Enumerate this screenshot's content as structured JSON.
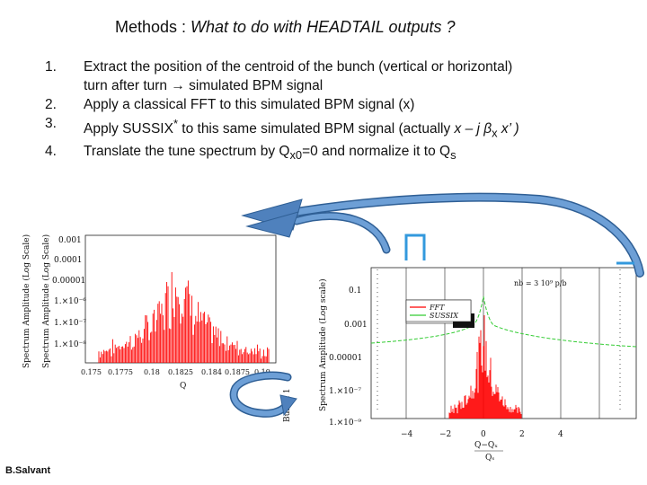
{
  "slide": {
    "title_prefix": "Methods : ",
    "title_italic": "What to do with HEADTAIL outputs ?",
    "author": "B.Salvant"
  },
  "steps": [
    {
      "number": "1.",
      "line1": "Extract the position of the centroid of the bunch (vertical or horizontal)",
      "line2_a": "turn after turn ",
      "line2_b": "simulated BPM signal"
    },
    {
      "number": "2.",
      "text": "Apply a classical FFT to this simulated BPM signal (x)"
    },
    {
      "number": "3.",
      "text_a": "Apply SUSSIX",
      "sup": "*",
      "text_b": " to this same simulated BPM signal (actually ",
      "expr": "x – j β",
      "sub": "x",
      "expr2": " x’ )"
    },
    {
      "number": "4.",
      "text_a": "Translate the tune spectrum by Q",
      "sub1": "x0",
      "text_b": "=0 and normalize it to Q",
      "sub2": "s"
    }
  ],
  "left_plot": {
    "ylabel_outer": "Spectrum Amplitude (Log Scale)",
    "ylabel_inner": "Spectrum Amplitude (Log Scale)",
    "ytick_labels": [
      "0.001",
      "0.0001",
      "0.00001",
      "1.×10⁻⁶",
      "1.×10⁻⁷",
      "1.×10⁻⁸"
    ],
    "xtick_labels": [
      "0.175",
      "0.1775",
      "0.18",
      "0.1825",
      "0.184",
      "0.1875",
      "0.19"
    ],
    "xlabel": "Q",
    "side_label": "Bunch 1"
  },
  "right_plot": {
    "ylabel": "Spectrum Amplitude (Log scale)",
    "ytick_labels": [
      "0.1",
      "0.001",
      "0.00001",
      "1.×10⁻⁷",
      "1.×10⁻⁹"
    ],
    "xtick_labels": [
      "−4",
      "−2",
      "0",
      "2",
      "4"
    ],
    "xlabel": "Q−Qₓ",
    "xlabel2": "Qₛ",
    "annotation": "nb = 3 10⁹ p/b",
    "legend": [
      "FFT",
      "SUSSIX"
    ]
  },
  "colors": {
    "fft": "#ff0000",
    "sussix": "#33cc33",
    "arrow": "#4f81bd",
    "bracket": "#3399dd"
  }
}
